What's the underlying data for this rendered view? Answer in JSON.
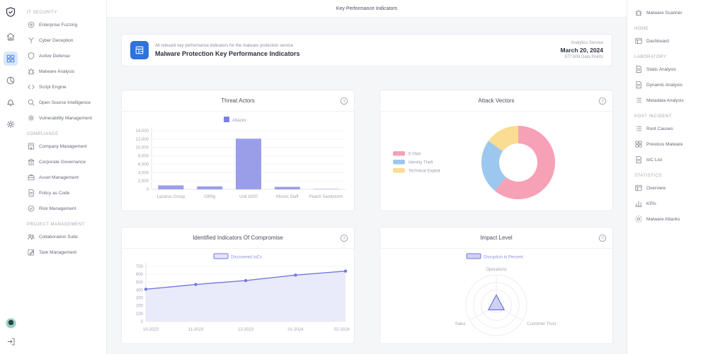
{
  "header": {
    "title": "Key Performance Indicators"
  },
  "rail": {
    "icons": [
      "app-logo",
      "home",
      "dashboard",
      "reports",
      "notifications",
      "settings"
    ],
    "bottom_icons": [
      "user-avatar",
      "logout"
    ]
  },
  "left_menu": {
    "sections": [
      {
        "title": "IT SECURITY",
        "items": [
          {
            "label": "Enterprise Fuzzing",
            "icon": "target"
          },
          {
            "label": "Cyber Deception",
            "icon": "fork"
          },
          {
            "label": "Active Defense",
            "icon": "shield"
          },
          {
            "label": "Malware Analysis",
            "icon": "bug"
          },
          {
            "label": "Script Engine",
            "icon": "code"
          },
          {
            "label": "Open Source Intelligence",
            "icon": "search"
          },
          {
            "label": "Vulnerability Management",
            "icon": "gear"
          }
        ]
      },
      {
        "title": "COMPLIANCE",
        "items": [
          {
            "label": "Company Management",
            "icon": "building"
          },
          {
            "label": "Corporate Governance",
            "icon": "bank"
          },
          {
            "label": "Asset Management",
            "icon": "briefcase"
          },
          {
            "label": "Policy as Code",
            "icon": "doc"
          },
          {
            "label": "Risk Management",
            "icon": "circlecheck"
          }
        ]
      },
      {
        "title": "PROJECT MANAGEMENT",
        "items": [
          {
            "label": "Collaboration Suite",
            "icon": "people"
          },
          {
            "label": "Task Management",
            "icon": "pencil"
          }
        ]
      }
    ]
  },
  "right_menu": {
    "top": {
      "label": "Malware Scanner",
      "icon": "bug"
    },
    "sections": [
      {
        "title": "HOME",
        "items": [
          {
            "label": "Dashboard",
            "icon": "window"
          }
        ]
      },
      {
        "title": "LABORATORY",
        "items": [
          {
            "label": "Static Analysis",
            "icon": "doc"
          },
          {
            "label": "Dynamic Analysis",
            "icon": "doc"
          },
          {
            "label": "Metadata Analysis",
            "icon": "list"
          }
        ]
      },
      {
        "title": "POST INCIDENT",
        "items": [
          {
            "label": "Root Causes",
            "icon": "list"
          },
          {
            "label": "Previous Malware",
            "icon": "grid"
          },
          {
            "label": "IoC List",
            "icon": "doc"
          }
        ]
      },
      {
        "title": "STATISTICS",
        "items": [
          {
            "label": "Overview",
            "icon": "window"
          },
          {
            "label": "KPIs",
            "icon": "bars"
          },
          {
            "label": "Malware Attacks",
            "icon": "burst"
          }
        ]
      }
    ]
  },
  "banner": {
    "subtitle": "All relevant key performance indicators for the malware protection service",
    "title": "Malware Protection Key Performance Indicators",
    "meta": {
      "service": "Analytics Service",
      "date": "March 20, 2024",
      "datapoints": "877.609 Data Points"
    }
  },
  "chart_data": [
    {
      "type": "bar",
      "title": "Threat Actors",
      "legend": [
        {
          "label": "Attacks",
          "color": "#7c80e3"
        }
      ],
      "categories": [
        "Lazarus Group",
        "OilRig",
        "Unit 8200",
        "Moses Staff",
        "Peach Sandstorm"
      ],
      "values": [
        950,
        720,
        12100,
        600,
        90
      ],
      "bar_color": "#9a9ee8",
      "ylim": [
        0,
        14000
      ],
      "ytick_step": 2000,
      "xlabel": "",
      "ylabel": "",
      "grid": false,
      "legend_position": "top"
    },
    {
      "type": "donut",
      "title": "Attack Vectors",
      "slices": [
        {
          "label": "E-Mail",
          "value": 61,
          "color": "#f7a1b6"
        },
        {
          "label": "Identity Theft",
          "value": 24,
          "color": "#9cc7ee"
        },
        {
          "label": "Technical Exploit",
          "value": 15,
          "color": "#fadc92"
        }
      ],
      "legend_position": "left"
    },
    {
      "type": "line",
      "title": "Identified Indicators Of Compromise",
      "legend": [
        {
          "label": "Discovered IoCs",
          "color": "#7477e0",
          "fill": "#e3e5f9"
        }
      ],
      "x": [
        "10-2023",
        "11-2023",
        "12-2023",
        "01-2024",
        "02-2024"
      ],
      "values": [
        410,
        470,
        520,
        590,
        640
      ],
      "ylim": [
        0,
        700
      ],
      "ytick_step": 100,
      "line_color": "#7477e0",
      "area_color": "#e9ebfa",
      "legend_position": "top",
      "grid": false
    },
    {
      "type": "radar",
      "title": "Impact Level",
      "legend": [
        {
          "label": "Disruption in Percent",
          "color": "#7477e0",
          "fill": "#cdd0f4"
        }
      ],
      "axes": [
        "Operations",
        "Customer Trust",
        "Sales"
      ],
      "values": [
        34,
        30,
        30
      ],
      "max": 100,
      "fill": "#b5b8ef",
      "stroke": "#6e72dc",
      "legend_position": "top"
    }
  ]
}
